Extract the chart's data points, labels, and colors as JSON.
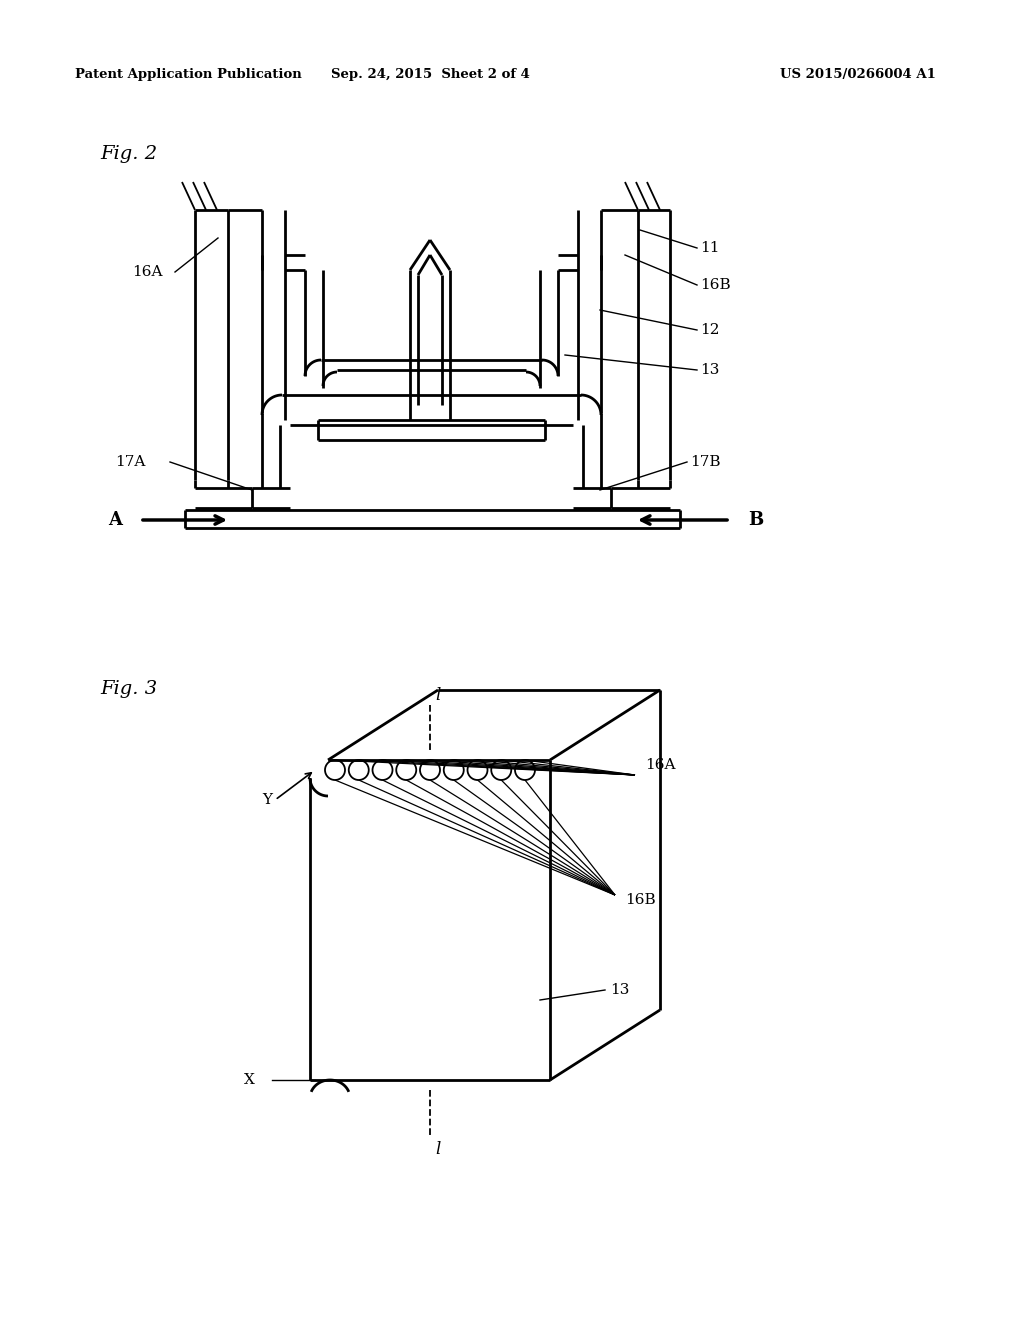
{
  "bg_color": "#ffffff",
  "header_left": "Patent Application Publication",
  "header_mid": "Sep. 24, 2015  Sheet 2 of 4",
  "header_right": "US 2015/0266004 A1",
  "fig2_label": "Fig. 2",
  "fig3_label": "Fig. 3"
}
